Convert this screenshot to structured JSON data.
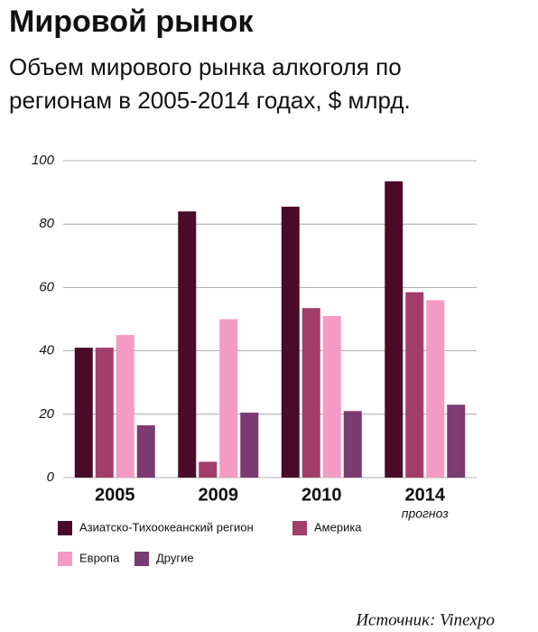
{
  "chart_data": {
    "type": "bar",
    "title": "Мировой рынок",
    "subtitle": [
      "Объем мирового рынка алкоголя по",
      "регионам в 2005-2014 годах, $ млрд."
    ],
    "categories": [
      "2005",
      "2009",
      "2010",
      "2014"
    ],
    "category_notes": [
      null,
      null,
      null,
      "прогноз"
    ],
    "series": [
      {
        "name": "Азиатско-Тихоокеанский регион",
        "color": "#4a0b2b",
        "values": [
          41,
          84,
          85.5,
          93.5
        ]
      },
      {
        "name": "Америка",
        "color": "#a23d6c",
        "values": [
          41,
          5,
          53.5,
          58.5
        ]
      },
      {
        "name": "Европа",
        "color": "#f39bc5",
        "values": [
          45,
          50,
          51,
          56
        ]
      },
      {
        "name": "Другие",
        "color": "#7b3a70",
        "values": [
          16.5,
          20.5,
          21,
          23
        ]
      }
    ],
    "ylim": [
      0,
      100
    ],
    "yticks": [
      0,
      20,
      40,
      60,
      80,
      100
    ],
    "grid": true,
    "source": "Источник: Vinexpo"
  }
}
